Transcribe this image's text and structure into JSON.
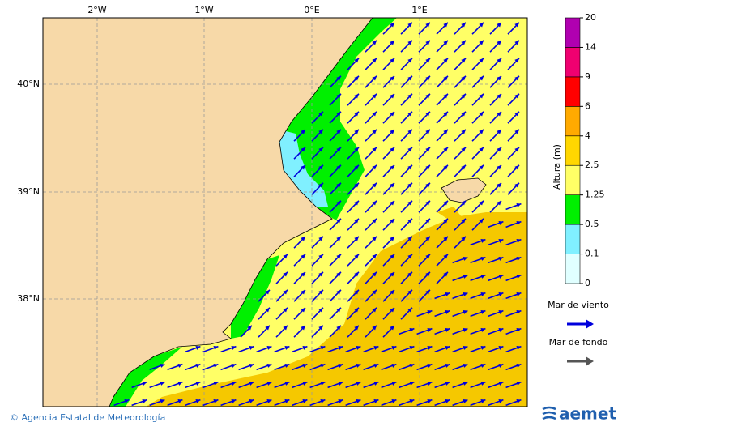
{
  "map": {
    "lon_labels": [
      "2°W",
      "1°W",
      "0°E",
      "1°E"
    ],
    "lat_labels": [
      "40°N",
      "39°N",
      "38°N"
    ],
    "colorbar": {
      "title": "Altura (m)",
      "levels": [
        0,
        0.1,
        0.5,
        1.25,
        2.5,
        4,
        6,
        9,
        14,
        20
      ],
      "colors": [
        "#e0ffff",
        "#80f0ff",
        "#00f000",
        "#ffff66",
        "#ffd700",
        "#ffaa00",
        "#ff0000",
        "#f00070",
        "#b000b0"
      ]
    },
    "legend": [
      {
        "name": "Mar de viento",
        "color": "#0000dd"
      },
      {
        "name": "Mar de fondo",
        "color": "#555555"
      }
    ],
    "footer": "© Agencia Estatal de Meteorología",
    "logo": "aemet"
  }
}
